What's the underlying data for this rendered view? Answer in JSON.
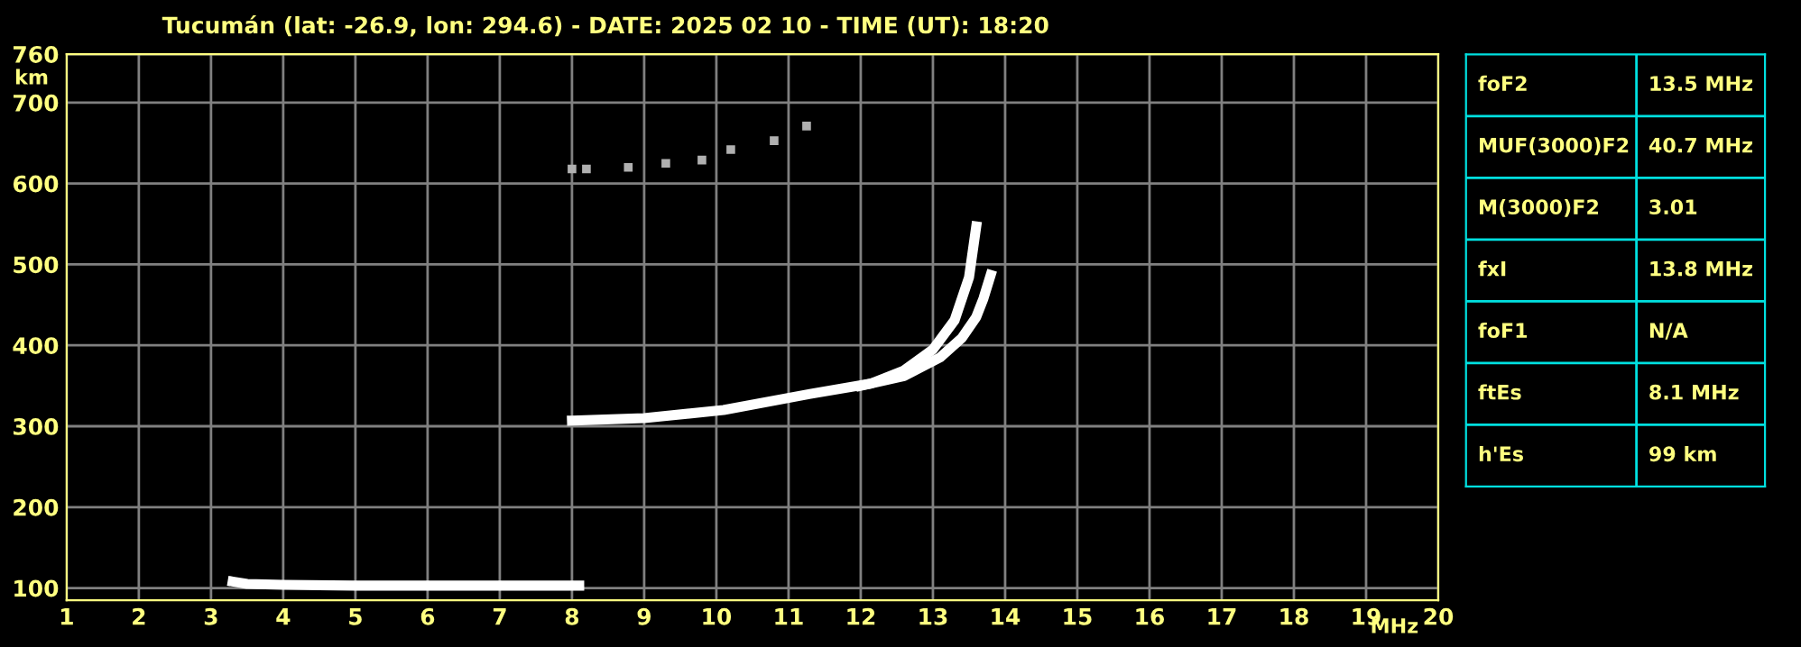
{
  "chart_data": [
    {
      "type": "line",
      "title": "Tucumán (lat: -26.9, lon: 294.6) - DATE: 2025 02 10 - TIME (UT): 18:20",
      "xlabel": "MHz",
      "ylabel": "km",
      "xlim": [
        1,
        20
      ],
      "ylim": [
        85,
        760
      ],
      "xticks": [
        1,
        2,
        3,
        4,
        5,
        6,
        7,
        8,
        9,
        10,
        11,
        12,
        13,
        14,
        15,
        16,
        17,
        18,
        19,
        20
      ],
      "yticks": [
        100,
        200,
        300,
        400,
        500,
        600,
        700,
        760
      ],
      "grid": true,
      "legend": false,
      "series": [
        {
          "color": "#ffffff",
          "x": [
            3.3,
            3.5,
            4.0,
            5.0,
            6.0,
            7.0,
            8.1
          ],
          "values": [
            108,
            105,
            104,
            103,
            103,
            103,
            103
          ]
        },
        {
          "color": "#ffffff",
          "x": [
            8.0,
            9.0,
            10.1,
            11.3,
            12.15,
            12.6,
            13.0,
            13.3,
            13.5,
            13.6
          ],
          "values": [
            307,
            310,
            320,
            340,
            353,
            369,
            395,
            431,
            484,
            547
          ]
        },
        {
          "color": "#ffffff",
          "x": [
            12.0,
            12.6,
            13.1,
            13.4,
            13.6,
            13.7,
            13.8
          ],
          "values": [
            350,
            362,
            385,
            409,
            435,
            458,
            487
          ]
        },
        {
          "type": "scatter",
          "marker": "square",
          "color": "#b0b0b0",
          "x": [
            8.0,
            8.2,
            8.78,
            9.3,
            9.8,
            10.2,
            10.8,
            11.25
          ],
          "values": [
            618,
            618,
            620,
            625,
            629,
            642,
            653,
            671
          ]
        }
      ]
    },
    {
      "type": "other",
      "annotations": [
        "foF2",
        "13.5 MHz",
        "MUF(3000)F2",
        "40.7 MHz",
        "M(3000)F2",
        "3.01",
        "fxI",
        "13.8 MHz",
        "foF1",
        "N/A",
        "ftEs",
        "8.1 MHz",
        "h'Es",
        "99 km"
      ]
    }
  ]
}
